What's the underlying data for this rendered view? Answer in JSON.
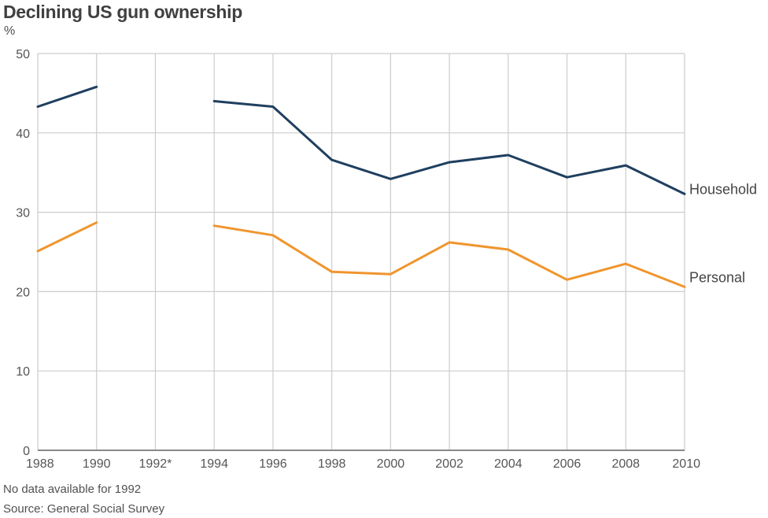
{
  "title": "Declining US gun ownership",
  "unit_label": "%",
  "note": "No data available for 1992",
  "source": "Source: General Social Survey",
  "chart_data": {
    "type": "line",
    "title": "Declining US gun ownership",
    "ylabel": "%",
    "xlabel": "",
    "categories": [
      "1988",
      "1990",
      "1992*",
      "1994",
      "1996",
      "1998",
      "2000",
      "2002",
      "2004",
      "2006",
      "2008",
      "2010"
    ],
    "x": [
      1988,
      1990,
      1992,
      1994,
      1996,
      1998,
      2000,
      2002,
      2004,
      2006,
      2008,
      2010
    ],
    "ylim": [
      0,
      50
    ],
    "yticks": [
      0,
      10,
      20,
      30,
      40,
      50
    ],
    "grid": true,
    "series": [
      {
        "name": "Household",
        "color": "#1f3f5f",
        "values": [
          43.3,
          45.8,
          null,
          44.0,
          43.3,
          36.6,
          34.2,
          36.3,
          37.2,
          34.4,
          35.9,
          32.3
        ]
      },
      {
        "name": "Personal",
        "color": "#f0952e",
        "values": [
          25.1,
          28.7,
          null,
          28.3,
          27.1,
          22.5,
          22.2,
          26.2,
          25.3,
          21.5,
          23.5,
          20.6
        ]
      }
    ]
  }
}
